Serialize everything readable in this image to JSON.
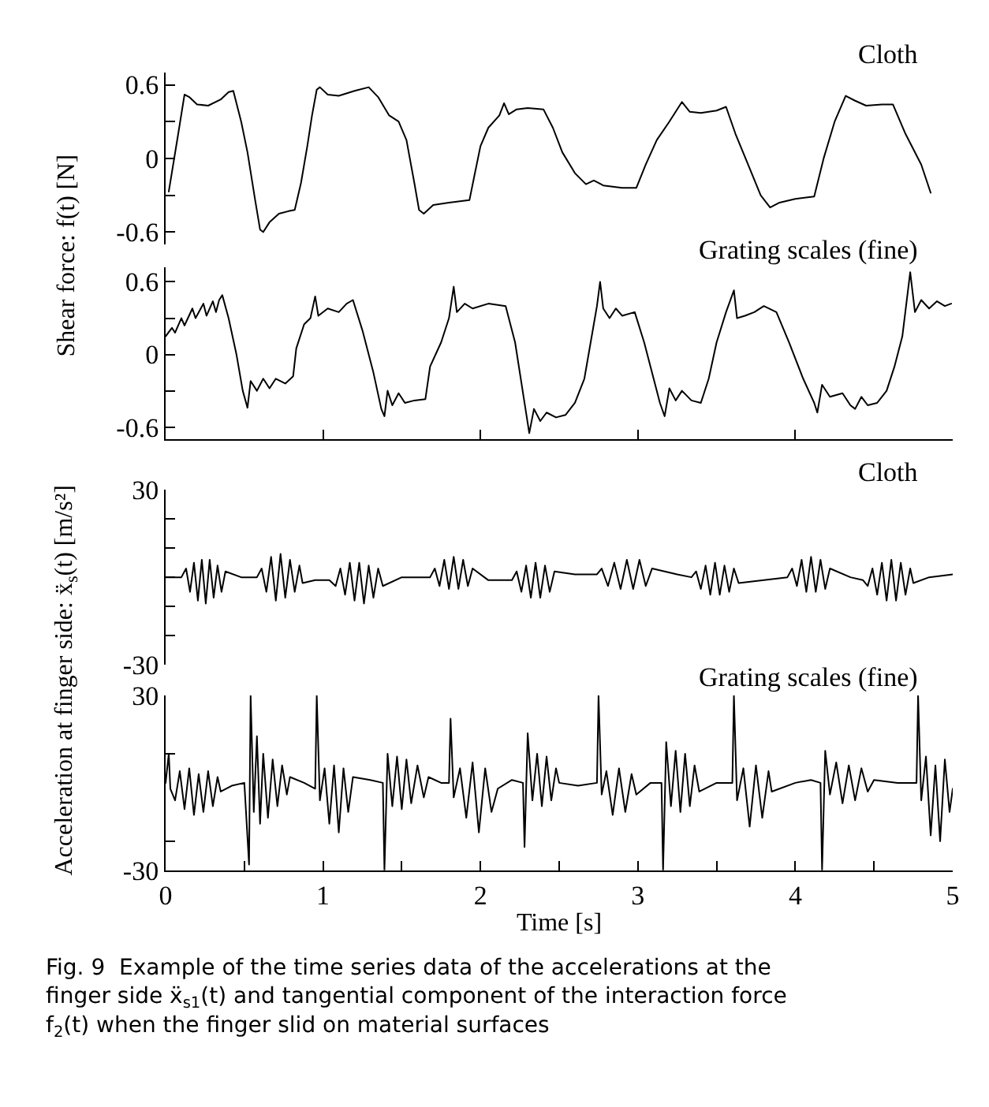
{
  "chart_data": [
    {
      "type": "line",
      "ylabel": "Shear force: f(t) [N]",
      "annotations": [
        "Cloth"
      ],
      "xlim": [
        0,
        5
      ],
      "ylim": [
        -0.7,
        0.7
      ],
      "yticks": [
        0.6,
        {
          "value": 0.3,
          "label": null
        },
        0,
        {
          "value": -0.3,
          "label": null
        },
        -0.6
      ],
      "tick_labels": "y",
      "series": [
        {
          "color": "#000000",
          "x": [
            0.02,
            0.08,
            0.12,
            0.15,
            0.2,
            0.27,
            0.35,
            0.4,
            0.43,
            0.48,
            0.52,
            0.57,
            0.6,
            0.62,
            0.66,
            0.72,
            0.78,
            0.82,
            0.86,
            0.9,
            0.93,
            0.96,
            0.98,
            1.03,
            1.1,
            1.2,
            1.29,
            1.35,
            1.42,
            1.48,
            1.53,
            1.58,
            1.61,
            1.64,
            1.7,
            1.8,
            1.93,
            1.96,
            2.0,
            2.05,
            2.12,
            2.15,
            2.18,
            2.23,
            2.3,
            2.4,
            2.46,
            2.52,
            2.6,
            2.67,
            2.72,
            2.78,
            2.9,
            2.99,
            3.05,
            3.12,
            3.2,
            3.28,
            3.33,
            3.4,
            3.5,
            3.56,
            3.62,
            3.7,
            3.78,
            3.84,
            3.9,
            4.0,
            4.12,
            4.18,
            4.25,
            4.32,
            4.38,
            4.45,
            4.55,
            4.62,
            4.7,
            4.8,
            4.86
          ],
          "values": [
            -0.27,
            0.2,
            0.52,
            0.5,
            0.44,
            0.43,
            0.48,
            0.54,
            0.55,
            0.3,
            0.05,
            -0.35,
            -0.58,
            -0.6,
            -0.52,
            -0.45,
            -0.43,
            -0.42,
            -0.2,
            0.1,
            0.35,
            0.56,
            0.58,
            0.52,
            0.51,
            0.55,
            0.58,
            0.5,
            0.35,
            0.3,
            0.15,
            -0.2,
            -0.42,
            -0.45,
            -0.38,
            -0.36,
            -0.34,
            -0.15,
            0.1,
            0.25,
            0.35,
            0.45,
            0.36,
            0.4,
            0.41,
            0.4,
            0.25,
            0.05,
            -0.12,
            -0.21,
            -0.18,
            -0.22,
            -0.24,
            -0.24,
            -0.05,
            0.15,
            0.3,
            0.46,
            0.38,
            0.37,
            0.39,
            0.42,
            0.2,
            -0.05,
            -0.3,
            -0.4,
            -0.36,
            -0.33,
            -0.31,
            0.0,
            0.3,
            0.51,
            0.47,
            0.43,
            0.44,
            0.44,
            0.2,
            -0.05,
            -0.28
          ]
        }
      ]
    },
    {
      "type": "line",
      "annotations": [
        "Grating scales (fine)"
      ],
      "xlim": [
        0,
        5
      ],
      "ylim": [
        -0.7,
        0.72
      ],
      "xticks": [
        {
          "value": 0,
          "label": null
        },
        {
          "value": 1,
          "label": null
        },
        {
          "value": 2,
          "label": null
        },
        {
          "value": 3,
          "label": null
        },
        {
          "value": 4,
          "label": null
        },
        {
          "value": 5,
          "label": null
        }
      ],
      "yticks": [
        0.6,
        {
          "value": 0.3,
          "label": null
        },
        0,
        {
          "value": -0.3,
          "label": null
        },
        -0.6
      ],
      "tick_labels": "y",
      "series": [
        {
          "color": "#000000",
          "x": [
            0.0,
            0.04,
            0.06,
            0.1,
            0.12,
            0.17,
            0.19,
            0.24,
            0.26,
            0.3,
            0.32,
            0.34,
            0.36,
            0.4,
            0.45,
            0.49,
            0.52,
            0.54,
            0.58,
            0.62,
            0.66,
            0.7,
            0.76,
            0.81,
            0.83,
            0.88,
            0.92,
            0.95,
            0.97,
            1.03,
            1.1,
            1.15,
            1.19,
            1.25,
            1.32,
            1.37,
            1.39,
            1.41,
            1.44,
            1.48,
            1.52,
            1.58,
            1.65,
            1.68,
            1.75,
            1.8,
            1.83,
            1.85,
            1.9,
            1.95,
            2.05,
            2.16,
            2.22,
            2.28,
            2.31,
            2.34,
            2.38,
            2.42,
            2.48,
            2.54,
            2.6,
            2.66,
            2.7,
            2.74,
            2.76,
            2.78,
            2.82,
            2.86,
            2.9,
            2.98,
            3.04,
            3.1,
            3.14,
            3.17,
            3.2,
            3.24,
            3.28,
            3.34,
            3.4,
            3.45,
            3.5,
            3.56,
            3.61,
            3.63,
            3.68,
            3.74,
            3.8,
            3.88,
            3.96,
            4.05,
            4.12,
            4.14,
            4.17,
            4.22,
            4.3,
            4.35,
            4.38,
            4.42,
            4.46,
            4.52,
            4.58,
            4.63,
            4.68,
            4.73,
            4.76,
            4.8,
            4.85,
            4.9,
            4.95,
            4.99
          ],
          "values": [
            0.15,
            0.22,
            0.18,
            0.3,
            0.24,
            0.38,
            0.3,
            0.42,
            0.32,
            0.44,
            0.35,
            0.45,
            0.49,
            0.3,
            0.0,
            -0.3,
            -0.44,
            -0.22,
            -0.3,
            -0.2,
            -0.28,
            -0.2,
            -0.24,
            -0.18,
            0.05,
            0.25,
            0.3,
            0.48,
            0.32,
            0.38,
            0.35,
            0.42,
            0.45,
            0.2,
            -0.15,
            -0.45,
            -0.51,
            -0.3,
            -0.42,
            -0.32,
            -0.4,
            -0.38,
            -0.37,
            -0.1,
            0.1,
            0.3,
            0.56,
            0.35,
            0.42,
            0.38,
            0.42,
            0.4,
            0.1,
            -0.4,
            -0.65,
            -0.45,
            -0.55,
            -0.48,
            -0.52,
            -0.5,
            -0.4,
            -0.2,
            0.1,
            0.4,
            0.6,
            0.38,
            0.3,
            0.38,
            0.32,
            0.35,
            0.1,
            -0.2,
            -0.4,
            -0.51,
            -0.28,
            -0.38,
            -0.3,
            -0.38,
            -0.4,
            -0.2,
            0.1,
            0.35,
            0.53,
            0.3,
            0.32,
            0.35,
            0.4,
            0.35,
            0.1,
            -0.2,
            -0.4,
            -0.48,
            -0.25,
            -0.35,
            -0.32,
            -0.42,
            -0.45,
            -0.35,
            -0.42,
            -0.4,
            -0.3,
            -0.1,
            0.15,
            0.68,
            0.35,
            0.45,
            0.38,
            0.44,
            0.4,
            0.42
          ]
        }
      ]
    },
    {
      "type": "line",
      "ylabel": "Acceleration at finger side: ẍ$_{s}$(t) [m/s²]",
      "annotations": [
        "Cloth"
      ],
      "xlim": [
        0,
        5
      ],
      "ylim": [
        -30,
        30
      ],
      "yticks": [
        30,
        {
          "value": 20,
          "label": null
        },
        {
          "value": 10,
          "label": null
        },
        {
          "value": 0,
          "label": null
        },
        {
          "value": -10,
          "label": null
        },
        {
          "value": -20,
          "label": null
        },
        -30
      ],
      "tick_labels": "y",
      "series": [
        {
          "color": "#000000",
          "x": [
            0.0,
            0.1,
            0.13,
            0.155,
            0.18,
            0.205,
            0.23,
            0.255,
            0.28,
            0.305,
            0.33,
            0.355,
            0.38,
            0.48,
            0.58,
            0.61,
            0.64,
            0.67,
            0.7,
            0.73,
            0.76,
            0.79,
            0.82,
            0.85,
            0.87,
            0.95,
            1.04,
            1.08,
            1.11,
            1.14,
            1.17,
            1.2,
            1.23,
            1.26,
            1.29,
            1.32,
            1.35,
            1.38,
            1.5,
            1.68,
            1.71,
            1.74,
            1.77,
            1.8,
            1.83,
            1.86,
            1.89,
            1.92,
            1.95,
            2.05,
            2.2,
            2.23,
            2.26,
            2.29,
            2.32,
            2.35,
            2.38,
            2.41,
            2.44,
            2.47,
            2.6,
            2.74,
            2.77,
            2.81,
            2.85,
            2.89,
            2.93,
            2.97,
            3.01,
            3.05,
            3.09,
            3.25,
            3.34,
            3.37,
            3.4,
            3.43,
            3.46,
            3.49,
            3.52,
            3.55,
            3.58,
            3.61,
            3.64,
            3.8,
            3.95,
            3.98,
            4.01,
            4.04,
            4.07,
            4.1,
            4.13,
            4.16,
            4.19,
            4.22,
            4.35,
            4.43,
            4.46,
            4.49,
            4.52,
            4.55,
            4.58,
            4.61,
            4.64,
            4.67,
            4.7,
            4.73,
            4.75,
            4.85,
            5.0
          ],
          "values": [
            0,
            0,
            3,
            -5,
            5,
            -8,
            6,
            -9,
            6,
            -7,
            4,
            -5,
            2,
            0,
            0,
            3,
            -5,
            7,
            -8,
            8,
            -7,
            6,
            -5,
            4,
            -2,
            -1,
            -1,
            -3,
            3,
            -6,
            5,
            -8,
            5,
            -9,
            4,
            -7,
            3,
            -3,
            0,
            0,
            3,
            -3,
            6,
            -4,
            7,
            -4,
            6,
            -3,
            3,
            -1,
            -1,
            2,
            -5,
            4,
            -7,
            5,
            -7,
            4,
            -5,
            2,
            1,
            1,
            3,
            -3,
            5,
            -4,
            6,
            -4,
            6,
            -3,
            3,
            1,
            0,
            2,
            -4,
            4,
            -6,
            5,
            -6,
            4,
            -5,
            3,
            -2,
            -1,
            0,
            3,
            -3,
            6,
            -5,
            7,
            -5,
            6,
            -4,
            3,
            0,
            -1,
            -3,
            3,
            -6,
            5,
            -8,
            6,
            -8,
            5,
            -6,
            3,
            -2,
            0,
            1
          ]
        }
      ]
    },
    {
      "type": "line",
      "annotations": [
        "Grating scales (fine)",
        "Fig. 9  Example of the time series data of the accelerations at the finger side ẍ$_{s1}$(t) and tangential component of the interaction force f$_{2}$(t) when the finger slid on material surfaces"
      ],
      "xlabel": "Time [s]",
      "xlim": [
        0,
        5
      ],
      "ylim": [
        -30,
        30
      ],
      "xticks": [
        0,
        {
          "value": 0.5,
          "label": null
        },
        1,
        {
          "value": 1.5,
          "label": null
        },
        2,
        {
          "value": 2.5,
          "label": null
        },
        3,
        {
          "value": 3.5,
          "label": null
        },
        4,
        {
          "value": 4.5,
          "label": null
        },
        5
      ],
      "yticks": [
        30,
        {
          "value": 10,
          "label": null
        },
        {
          "value": -20,
          "label": null
        },
        -30
      ],
      "series": [
        {
          "color": "#000000",
          "x": [
            0.0,
            0.02,
            0.03,
            0.06,
            0.09,
            0.12,
            0.15,
            0.18,
            0.21,
            0.24,
            0.27,
            0.3,
            0.33,
            0.35,
            0.42,
            0.5,
            0.53,
            0.54,
            0.56,
            0.58,
            0.6,
            0.62,
            0.65,
            0.68,
            0.71,
            0.74,
            0.77,
            0.79,
            0.88,
            0.95,
            0.96,
            0.98,
            1.01,
            1.04,
            1.07,
            1.1,
            1.13,
            1.16,
            1.19,
            1.3,
            1.38,
            1.39,
            1.41,
            1.44,
            1.47,
            1.5,
            1.53,
            1.56,
            1.6,
            1.64,
            1.67,
            1.75,
            1.8,
            1.81,
            1.83,
            1.87,
            1.91,
            1.95,
            1.99,
            2.03,
            2.07,
            2.11,
            2.2,
            2.27,
            2.28,
            2.3,
            2.33,
            2.36,
            2.39,
            2.42,
            2.45,
            2.48,
            2.5,
            2.62,
            2.74,
            2.75,
            2.77,
            2.8,
            2.84,
            2.88,
            2.92,
            2.96,
            2.99,
            3.08,
            3.15,
            3.16,
            3.18,
            3.21,
            3.24,
            3.27,
            3.3,
            3.33,
            3.36,
            3.39,
            3.5,
            3.6,
            3.61,
            3.63,
            3.67,
            3.71,
            3.75,
            3.79,
            3.83,
            3.85,
            4.0,
            4.1,
            4.16,
            4.17,
            4.19,
            4.22,
            4.26,
            4.3,
            4.34,
            4.38,
            4.42,
            4.46,
            4.5,
            4.65,
            4.77,
            4.78,
            4.8,
            4.83,
            4.86,
            4.89,
            4.92,
            4.95,
            4.98,
            5.0
          ],
          "values": [
            0,
            10,
            -2,
            -6,
            4,
            -9,
            5,
            -11,
            3,
            -10,
            4,
            -8,
            2,
            -3,
            -1,
            0,
            -28,
            30,
            -10,
            16,
            -14,
            10,
            -12,
            8,
            -8,
            6,
            -4,
            2,
            0,
            -2,
            30,
            -6,
            5,
            -14,
            6,
            -17,
            5,
            -10,
            2,
            1,
            0,
            -30,
            10,
            -8,
            9,
            -9,
            8,
            -7,
            6,
            -5,
            2,
            0,
            0,
            22,
            -5,
            5,
            -12,
            7,
            -17,
            5,
            -10,
            -2,
            1,
            0,
            -22,
            17,
            -6,
            10,
            -8,
            9,
            -6,
            5,
            0,
            -1,
            0,
            30,
            -4,
            4,
            -11,
            5,
            -10,
            3,
            -4,
            0,
            0,
            -30,
            14,
            -8,
            11,
            -10,
            10,
            -8,
            6,
            -3,
            0,
            0,
            30,
            -6,
            5,
            -15,
            6,
            -12,
            4,
            -3,
            0,
            1,
            0,
            -30,
            11,
            -4,
            7,
            -7,
            6,
            -6,
            5,
            -3,
            1,
            0,
            0,
            30,
            -6,
            9,
            -18,
            6,
            -20,
            8,
            -10,
            -2
          ]
        }
      ]
    }
  ]
}
